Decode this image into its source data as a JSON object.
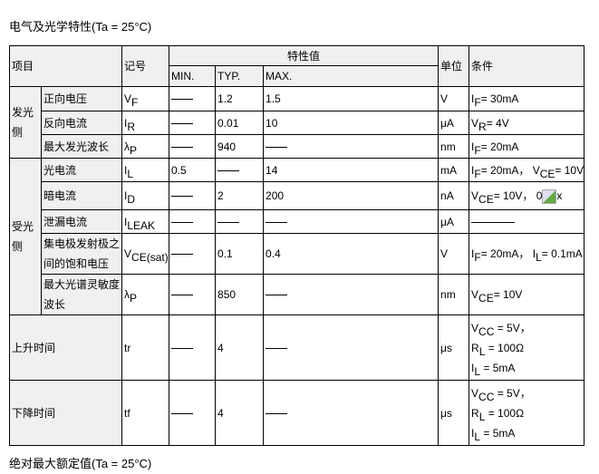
{
  "title": "电气及光学特性(Ta = 25°C)",
  "footer_title": "绝对最大额定值(Ta = 25°C)",
  "headers": {
    "item": "项目",
    "symbol": "记号",
    "char_value": "特性值",
    "min": "MIN.",
    "typ": "TYP.",
    "max": "MAX.",
    "unit": "单位",
    "condition": "条件"
  },
  "groups": [
    {
      "label": "发光侧",
      "rows": [
        {
          "name": "正向电压",
          "sym": "V",
          "sub": "F",
          "min": "—",
          "typ": "1.2",
          "max": "1.5",
          "unit": "V",
          "cond": [
            [
              [
                "I",
                "F"
              ],
              [
                "= 30mA",
                ""
              ]
            ]
          ]
        },
        {
          "name": "反向电流",
          "sym": "I",
          "sub": "R",
          "min": "—",
          "typ": "0.01",
          "max": "10",
          "unit": "μA",
          "cond": [
            [
              [
                "V",
                "R"
              ],
              [
                "= 4V",
                ""
              ]
            ]
          ]
        },
        {
          "name": "最大发光波长",
          "sym": "λ",
          "sub": "P",
          "min": "—",
          "typ": "940",
          "max": "—",
          "unit": "nm",
          "cond": [
            [
              [
                "I",
                "F"
              ],
              [
                "= 20mA",
                ""
              ]
            ]
          ]
        }
      ]
    },
    {
      "label": "受光侧",
      "rows": [
        {
          "name": "光电流",
          "sym": "I",
          "sub": "L",
          "min": "0.5",
          "typ": "—",
          "max": "14",
          "unit": "mA",
          "cond": [
            [
              [
                "I",
                "F"
              ],
              [
                "= 20mA，  V",
                "CE"
              ],
              [
                "= 10V",
                ""
              ]
            ]
          ]
        },
        {
          "name": "暗电流",
          "sym": "I",
          "sub": "D",
          "min": "—",
          "typ": "2",
          "max": "200",
          "unit": "nA",
          "cond": [
            [
              [
                "V",
                "CE"
              ],
              [
                "= 10V，  0",
                ""
              ],
              [
                "[img]",
                ""
              ],
              [
                "x",
                ""
              ]
            ]
          ]
        },
        {
          "name": "泄漏电流",
          "sym": "I",
          "sub": "LEAK",
          "min": "—",
          "typ": "—",
          "max": "—",
          "unit": "μA",
          "cond": [
            [
              [
                "——",
                ""
              ]
            ]
          ]
        },
        {
          "name": "集电极发射极之间的饱和电压",
          "sym": "V",
          "sub": "CE(sat)",
          "min": "—",
          "typ": "0.1",
          "max": "0.4",
          "unit": "V",
          "cond": [
            [
              [
                "I",
                "F"
              ],
              [
                "= 20mA，  I",
                "L"
              ],
              [
                "= 0.1mA",
                ""
              ]
            ]
          ]
        },
        {
          "name": "最大光谱灵敏度波长",
          "sym": "λ",
          "sub": "P",
          "min": "—",
          "typ": "850",
          "max": "—",
          "unit": "nm",
          "cond": [
            [
              [
                "V",
                "CE"
              ],
              [
                "= 10V",
                ""
              ]
            ]
          ]
        }
      ]
    }
  ],
  "timing": [
    {
      "name": "上升时间",
      "sym": "tr",
      "sub": "",
      "min": "—",
      "typ": "4",
      "max": "—",
      "unit": "μs",
      "cond": [
        [
          [
            "V",
            "CC"
          ],
          [
            " = 5V，",
            ""
          ]
        ],
        [
          [
            "R",
            "L"
          ],
          [
            " = 100Ω",
            ""
          ]
        ],
        [
          [
            "I",
            "L"
          ],
          [
            " = 5mA",
            ""
          ]
        ]
      ]
    },
    {
      "name": "下降时间",
      "sym": "tf",
      "sub": "",
      "min": "—",
      "typ": "4",
      "max": "—",
      "unit": "μs",
      "cond": [
        [
          [
            "V",
            "CC"
          ],
          [
            " = 5V，",
            ""
          ]
        ],
        [
          [
            "R",
            "L"
          ],
          [
            " = 100Ω",
            ""
          ]
        ],
        [
          [
            "I",
            "L"
          ],
          [
            " = 5mA",
            ""
          ]
        ]
      ]
    }
  ]
}
